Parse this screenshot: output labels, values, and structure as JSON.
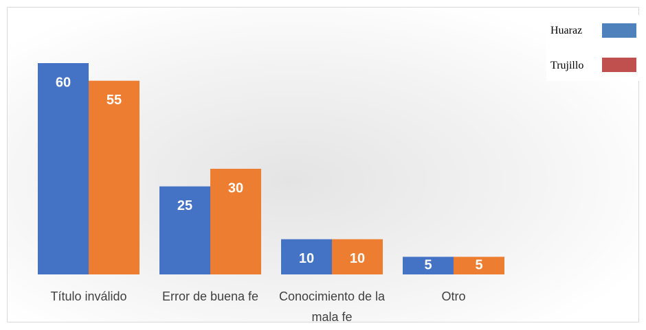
{
  "chart_data": {
    "type": "bar",
    "categories": [
      "Título inválido",
      "Error de buena fe",
      "Conocimiento de la mala fe",
      "Otro"
    ],
    "series": [
      {
        "name": "Huaraz",
        "color": "#4472c4",
        "legend_color": "#4f81bd",
        "values": [
          60,
          25,
          10,
          5
        ]
      },
      {
        "name": "Trujillo",
        "color": "#ed7d31",
        "legend_color": "#c0504d",
        "values": [
          55,
          30,
          10,
          5
        ]
      }
    ],
    "legend": "top-right"
  }
}
